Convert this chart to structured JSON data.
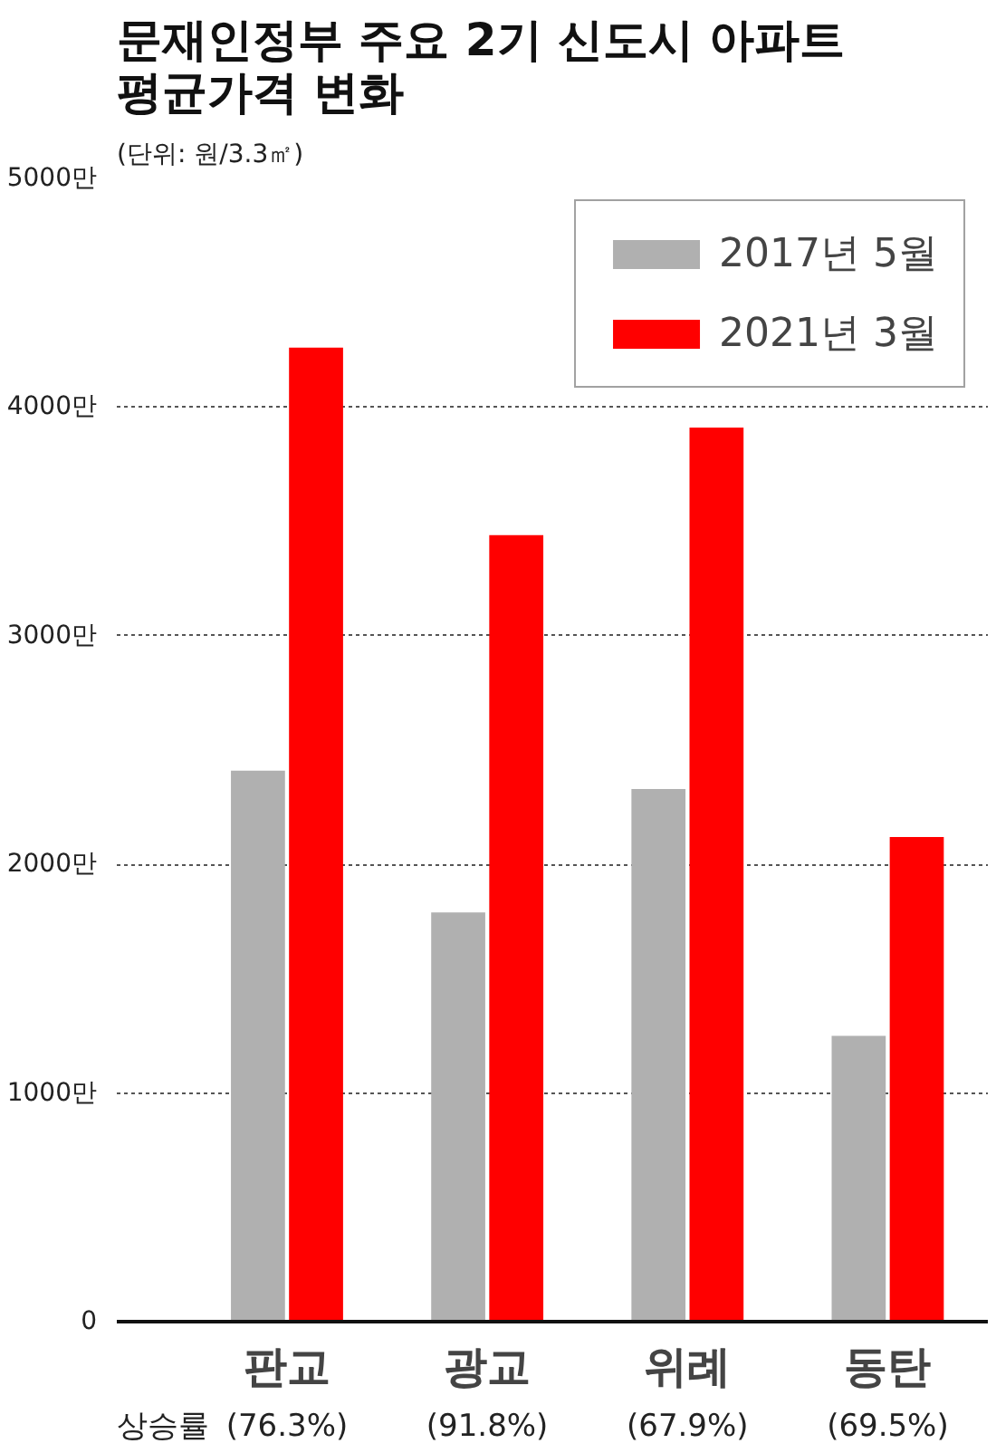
{
  "chart_data": {
    "type": "bar",
    "title": "문재인정부 주요 2기 신도시 아파트\n평균가격 변화",
    "subtitle": "(단위: 원/3.3㎡)",
    "categories": [
      "판교",
      "광교",
      "위례",
      "동탄"
    ],
    "series": [
      {
        "name": "2017년 5월",
        "color": "#b0b0b0",
        "values": [
          2410,
          1790,
          2330,
          1250
        ]
      },
      {
        "name": "2021년 3월",
        "color": "#ff0000",
        "values": [
          4260,
          3440,
          3910,
          2120
        ]
      }
    ],
    "annotations": [
      "상승률",
      "(76.3%)",
      "(91.8%)",
      "(67.9%)",
      "(69.5%)"
    ],
    "ylim": [
      0,
      5000
    ],
    "yticks": [
      0,
      {
        "value": 1000,
        "label": "1000만"
      },
      {
        "value": 2000,
        "label": "2000만"
      },
      {
        "value": 3000,
        "label": "3000만"
      },
      {
        "value": 4000,
        "label": "4000만"
      },
      {
        "value": 5000,
        "label": "5000만"
      }
    ],
    "grid": "y",
    "legend": "top right"
  }
}
